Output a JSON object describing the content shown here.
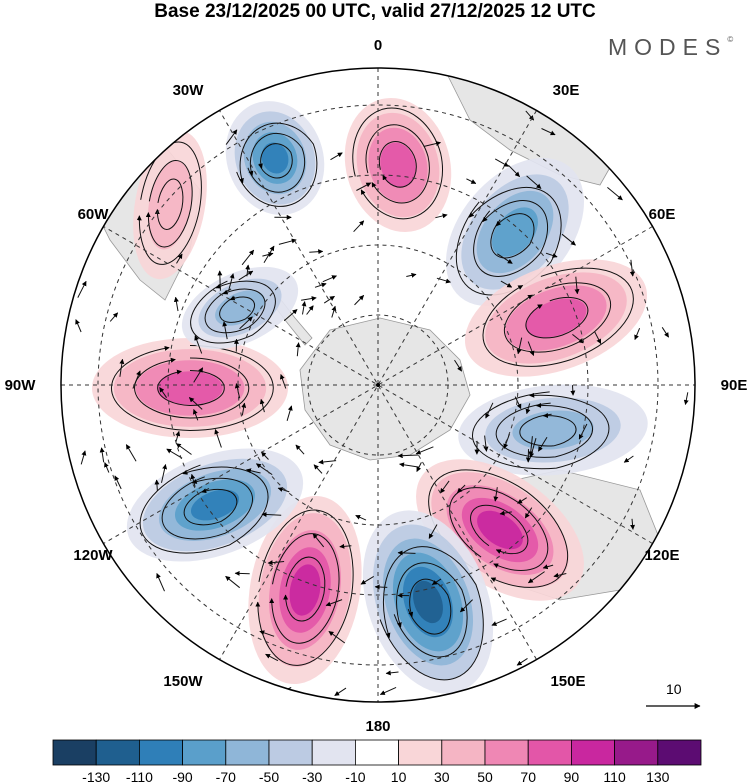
{
  "title": "Base 23/12/2025 00 UTC, valid 27/12/2025 12 UTC",
  "logo": "MODES",
  "logo_mark": "©",
  "longitude_labels": [
    "0",
    "30E",
    "60E",
    "90E",
    "120E",
    "150E",
    "180",
    "150W",
    "120W",
    "90W",
    "60W",
    "30W"
  ],
  "vector_scale": {
    "label": "10",
    "value": 10
  },
  "colorbar": {
    "ticks": [
      "-130",
      "-110",
      "-90",
      "-70",
      "-50",
      "-30",
      "-10",
      "10",
      "30",
      "50",
      "70",
      "90",
      "110",
      "130"
    ],
    "colors": [
      "#1a3f63",
      "#1f5f8f",
      "#2f7fb8",
      "#5a9fcb",
      "#8fb6d8",
      "#bccbe3",
      "#e2e4f0",
      "#ffffff",
      "#f9d6d8",
      "#f5b5c4",
      "#ef87b4",
      "#e356a8",
      "#c9279f",
      "#971a8a",
      "#5c0c72"
    ]
  },
  "anomaly_cells": [
    {
      "name": "ne-positive",
      "value": 85
    },
    {
      "name": "nw-negative",
      "value": -95
    },
    {
      "name": "e-negative",
      "value": -80
    },
    {
      "name": "e-positive",
      "value": 85
    },
    {
      "name": "ese-negative",
      "value": -55
    },
    {
      "name": "se-positive",
      "value": 90
    },
    {
      "name": "s-negative",
      "value": -115
    },
    {
      "name": "s-positive",
      "value": 105
    },
    {
      "name": "wsw-negative",
      "value": -90
    },
    {
      "name": "w-positive",
      "value": 80
    },
    {
      "name": "wnw-negative",
      "value": -50
    },
    {
      "name": "nnw-positive",
      "value": 30
    }
  ]
}
